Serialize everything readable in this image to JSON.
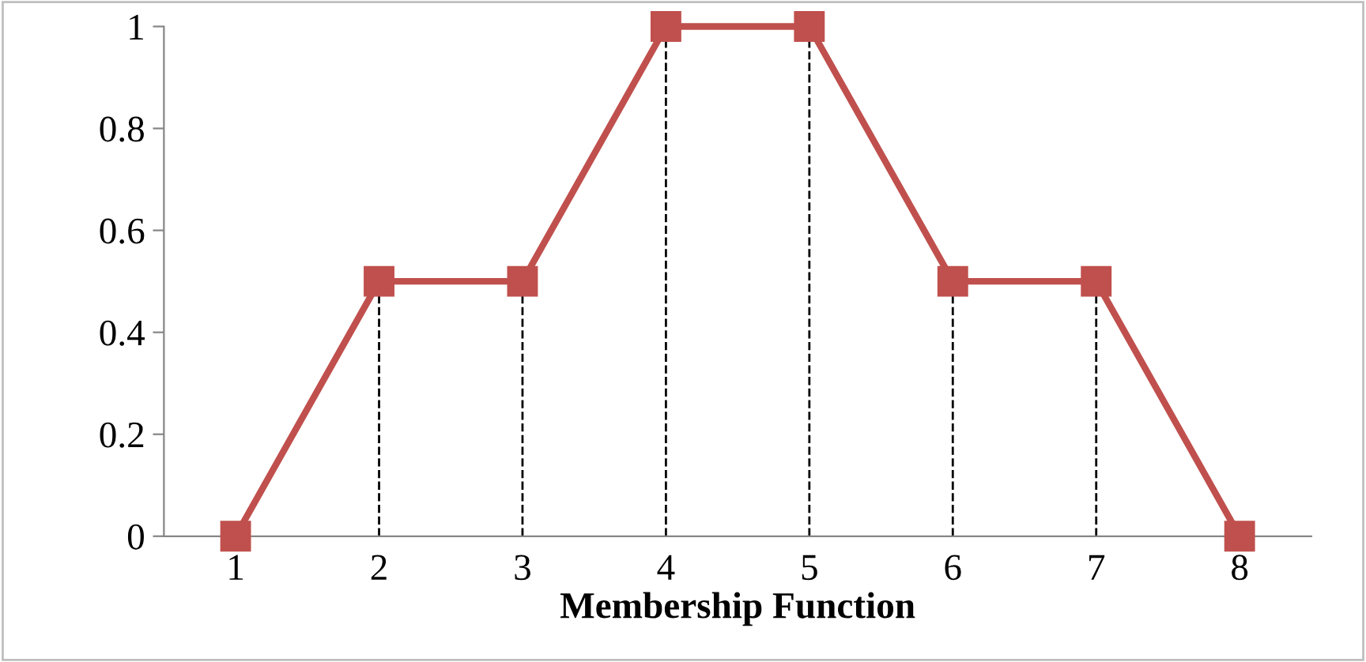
{
  "chart_data": {
    "type": "line",
    "xlabel": "Membership Function",
    "x": [
      1,
      2,
      3,
      4,
      5,
      6,
      7,
      8
    ],
    "series": [
      {
        "color": "#c0504d",
        "values": [
          0,
          0.5,
          0.5,
          1,
          1,
          0.5,
          0.5,
          0
        ]
      }
    ],
    "xlim": [
      0.5,
      8.5
    ],
    "xticks": [
      1,
      2,
      3,
      4,
      5,
      6,
      7,
      8
    ],
    "ylim": [
      0,
      1
    ],
    "yticks": [
      0,
      0.2,
      0.4,
      0.6,
      0.8,
      1
    ],
    "marker": "square",
    "line_style": "solid",
    "grid": false,
    "legend": false,
    "ref_lines": [
      {
        "axis": "x",
        "value": 2,
        "line_style": "dashed",
        "color": "#000000"
      },
      {
        "axis": "x",
        "value": 3,
        "line_style": "dashed",
        "color": "#000000"
      },
      {
        "axis": "x",
        "value": 4,
        "line_style": "dashed",
        "color": "#000000"
      },
      {
        "axis": "x",
        "value": 5,
        "line_style": "dashed",
        "color": "#000000"
      },
      {
        "axis": "x",
        "value": 6,
        "line_style": "dashed",
        "color": "#000000"
      },
      {
        "axis": "x",
        "value": 7,
        "line_style": "dashed",
        "color": "#000000"
      }
    ]
  }
}
